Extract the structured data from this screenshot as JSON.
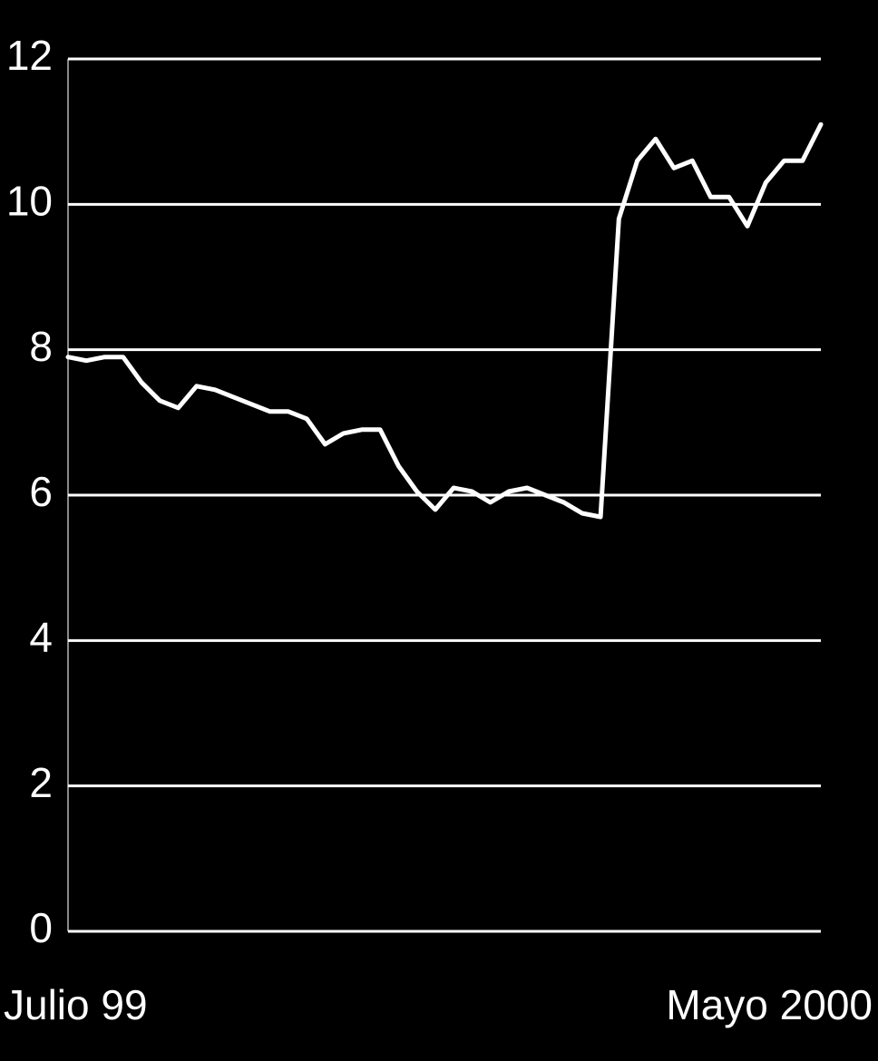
{
  "chart_data": {
    "type": "line",
    "categories": [
      "Julio 99",
      null,
      null,
      null,
      null,
      null,
      null,
      null,
      null,
      null,
      null,
      null,
      null,
      null,
      null,
      null,
      null,
      null,
      null,
      null,
      null,
      null,
      null,
      null,
      null,
      null,
      null,
      null,
      null,
      null,
      null,
      null,
      null,
      null,
      null,
      null,
      null,
      null,
      null,
      null,
      null,
      "Mayo 2000"
    ],
    "values": [
      7.9,
      7.85,
      7.9,
      7.9,
      7.55,
      7.3,
      7.2,
      7.5,
      7.45,
      7.35,
      7.25,
      7.15,
      7.15,
      7.05,
      6.7,
      6.85,
      6.9,
      6.9,
      6.4,
      6.05,
      5.8,
      6.1,
      6.05,
      5.9,
      6.05,
      6.1,
      6.0,
      5.9,
      5.75,
      5.7,
      9.8,
      10.6,
      10.9,
      10.5,
      10.6,
      10.1,
      10.1,
      9.7,
      10.3,
      10.6,
      10.6,
      11.1
    ],
    "color": "#ffffff",
    "ylim": [
      0,
      12
    ],
    "yticks": [
      0,
      2,
      4,
      6,
      8,
      10,
      12
    ],
    "grid": true
  }
}
